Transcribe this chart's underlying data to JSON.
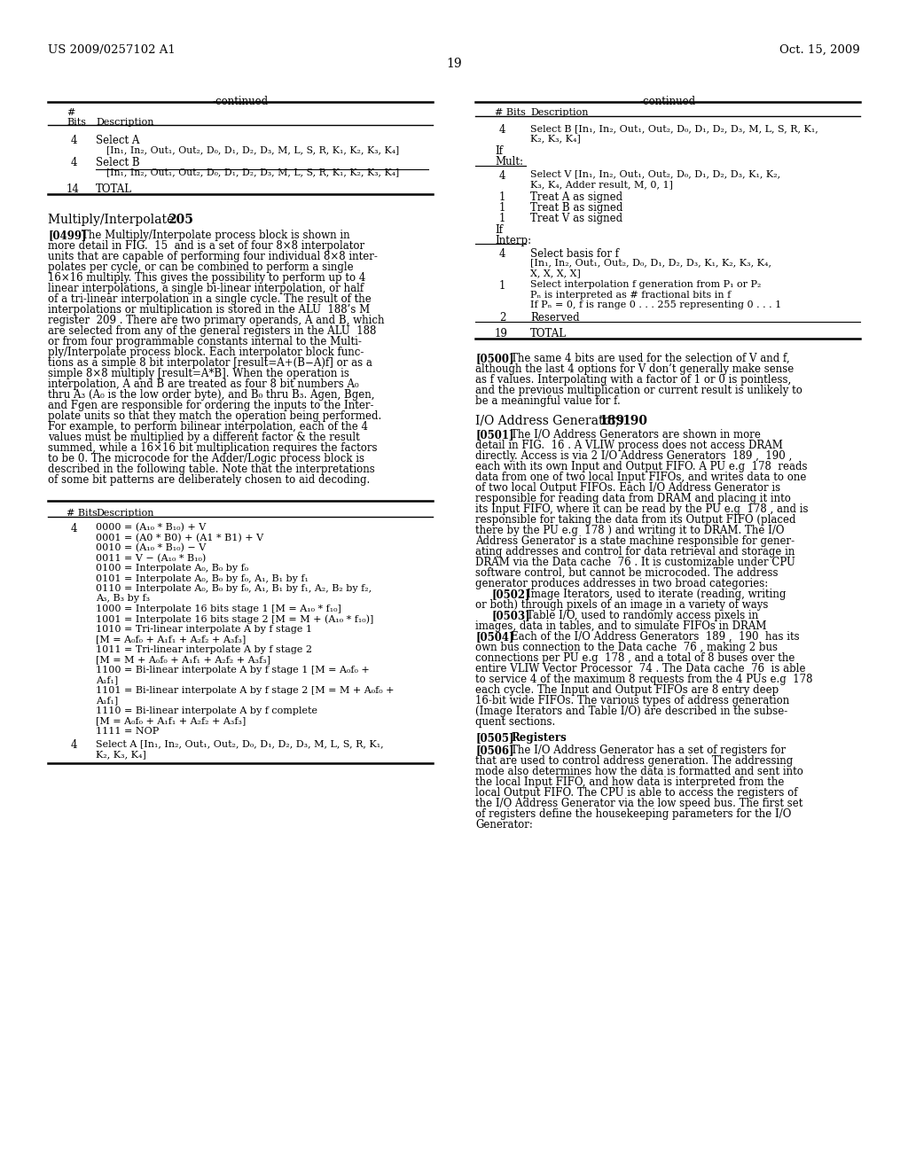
{
  "bg_color": "#ffffff",
  "text_color": "#000000",
  "header_left": "US 2009/0257102 A1",
  "header_right": "Oct. 15, 2009",
  "page_num": "19",
  "left_continued": "-continued",
  "right_continued": "-continued",
  "table1_header": [
    "#",
    "Bits  Description"
  ],
  "table1_rows": [
    [
      "4",
      "Select A",
      "[In₁, In₂, Out₁, Out₂, D₀, D₁, D₂, D₃, M, L, S, R, K₁, K₂, K₃, K₄]"
    ],
    [
      "4",
      "Select B",
      "[In₁, In₂, Out₁, Out₂, D₀, D₁, D₂, D₃, M, L, S, R, K₁, K₂, K₃, K₄]"
    ],
    [
      "14",
      "TOTAL",
      ""
    ]
  ],
  "section_title": "Multiply/Interpolate",
  "section_num": "205",
  "para_0499": [
    "[0499]",
    "The Multiply/Interpolate process block is shown in more detail in FIG. 15 and is a set of four 8×8 interpolator units that are capable of performing four individual 8×8 inter-polates per cycle, or can be combined to perform a single 16×16 multiply. This gives the possibility to perform up to 4 linear interpolations, a single bi-linear interpolation, or half of a tri-linear interpolation in a single cycle. The result of the interpolations or multiplication is stored in the ALU 188’s M register 209. There are two primary operands, A and B, which are selected from any of the general registers in the ALU 188 or from four programmable constants internal to the Multi-ply/Interpolate process block. Each interpolator block func-tions as a simple 8 bit interpolator [result=A+(B−A)f] or as a simple 8×8 multiply [result=A*B]. When the operation is interpolation, A and B are treated as four 8 bit numbers A₀ thru A₃ (A₀ is the low order byte), and B₀ thru B₃. Agen, Bgen, and Fgen are responsible for ordering the inputs to the Inter-polate units so that they match the operation being performed. For example, to perform bilinear interpolation, each of the 4 values must be multiplied by a different factor & the result summed, while a 16×16 bit multiplication requires the factors to be 0. The microcode for the Adder/Logic process block is described in the following table. Note that the interpretations of some bit patterns are deliberately chosen to aid decoding."
  ],
  "table2_rows": [
    [
      "4",
      "0000 = (A₁₀ * B₁₀) + V",
      "0001 = (A0 * B0) + (A1 * B1) + V",
      "0010 = (A₁₀ * B₁₀) − V",
      "0011 = V − (A₁₀ * B₁₀)",
      "0100 = Interpolate A₀, B₀ by f₀",
      "0101 = Interpolate A₀, B₀ by f₀, A₁, B₁ by f₁",
      "0110 = Interpolate A₀, B₀ by f₀, A₁, B₁ by f₁, A₂, B₂ by f₂,",
      "A₃, B₃ by f₃",
      "1000 = Interpolate 16 bits stage 1 [M = A₁₀ * f₁₀]",
      "1001 = Interpolate 16 bits stage 2 [M = M + (A₁₀ * f₁₀)]",
      "1010 = Tri-linear interpolate A by f stage 1",
      "[M = A₀f₀ + A₁f₁ + A₂f₂ + A₃f₃]",
      "1011 = Tri-linear interpolate A by f stage 2",
      "[M = M + A₀f₀ + A₁f₁ + A₂f₂ + A₃f₃]",
      "1100 = Bi-linear interpolate A by f stage 1 [M = A₀f₀ +",
      "A₁f₁]",
      "1101 = Bi-linear interpolate A by f stage 2 [M = M + A₀f₀ +",
      "A₁f₁]",
      "1110 = Bi-linear interpolate A by f complete",
      "[M = A₀f₀ + A₁f₁ + A₂f₂ + A₃f₃]",
      "1111 = NOP"
    ],
    [
      "4",
      "Select A [In₁, In₂, Out₁, Out₂, D₀, D₁, D₂, D₃, M, L, S, R, K₁,",
      "K₂, K₃, K₄]"
    ]
  ],
  "right_table_rows": [
    {
      "bits": "4",
      "desc": [
        "Select B [In₁, In₂, Out₁, Out₂, D₀, D₁, D₂, D₃, M, L, S, R, K₁,",
        "K₂, K₃, K₄]"
      ]
    },
    {
      "bits": "If",
      "desc": []
    },
    {
      "bits": "Mult:",
      "desc": []
    },
    {
      "bits": "",
      "desc": [
        ""
      ]
    },
    {
      "bits": "4",
      "desc": [
        "Select V [In₁, In₂, Out₁, Out₂, D₀, D₁, D₂, D₃, K₁, K₂,",
        "K₃, K₄, Adder result, M, 0, 1]"
      ]
    },
    {
      "bits": "1",
      "desc": [
        "Treat A as signed"
      ]
    },
    {
      "bits": "1",
      "desc": [
        "Treat B as signed"
      ]
    },
    {
      "bits": "1",
      "desc": [
        "Treat V as signed"
      ]
    },
    {
      "bits": "If",
      "desc": []
    },
    {
      "bits": "Interp:",
      "desc": []
    },
    {
      "bits": "",
      "desc": [
        ""
      ]
    },
    {
      "bits": "4",
      "desc": [
        "Select basis for f",
        "[In₁, In₂, Out₁, Out₂, D₀, D₁, D₂, D₃, K₁, K₂, K₃, K₄,",
        "X, X, X, X]"
      ]
    },
    {
      "bits": "1",
      "desc": [
        "Select interpolation f generation from P₁ or P₂",
        "Pₙ is interpreted as # fractional bits in f",
        "If Pₙ = 0, f is range 0 . . . 255 representing 0 . . . 1"
      ]
    },
    {
      "bits": "2",
      "desc": [
        "Reserved"
      ]
    },
    {
      "bits": "",
      "desc": [
        ""
      ]
    },
    {
      "bits": "19",
      "desc": [
        "TOTAL"
      ]
    }
  ]
}
